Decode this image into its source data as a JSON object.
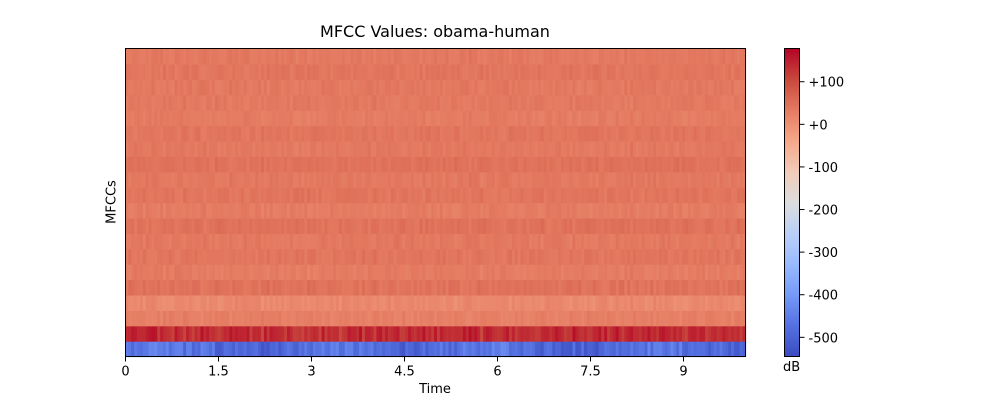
{
  "chart_data": {
    "type": "heatmap",
    "title": "MFCC Values: obama-human",
    "xlabel": "Time",
    "ylabel": "MFCCs",
    "x_ticks": [
      0,
      1.5,
      3,
      4.5,
      6,
      7.5,
      9
    ],
    "x_tick_labels": [
      "0",
      "1.5",
      "3",
      "4.5",
      "6",
      "7.5",
      "9"
    ],
    "xlim": [
      0,
      10
    ],
    "n_coefficients": 20,
    "colorbar": {
      "label": "dB",
      "ticks": [
        100,
        0,
        -100,
        -200,
        -300,
        -400,
        -500
      ],
      "tick_labels": [
        "+100",
        "+0",
        "-100",
        "-200",
        "-300",
        "-400",
        "-500"
      ],
      "range": [
        -545,
        178
      ],
      "colormap": "coolwarm"
    },
    "coefficient_mean_db": [
      -480,
      135,
      25,
      10,
      45,
      30,
      40,
      35,
      45,
      30,
      40,
      35,
      45,
      35,
      40,
      30,
      35,
      35,
      40,
      35
    ],
    "coefficient_variation_db": [
      45,
      35,
      14,
      15,
      15,
      13,
      13,
      13,
      13,
      13,
      13,
      12,
      12,
      12,
      12,
      12,
      12,
      12,
      12,
      12
    ]
  }
}
